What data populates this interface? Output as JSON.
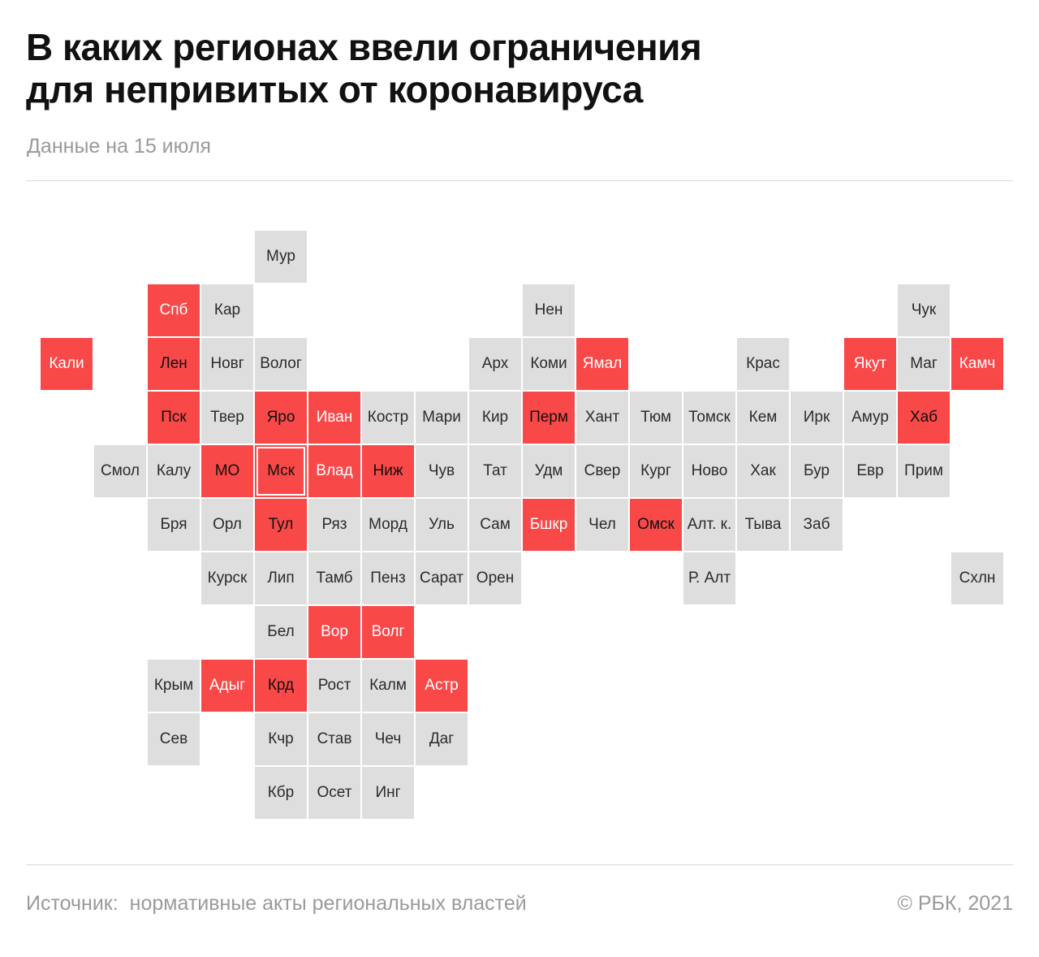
{
  "title": {
    "line1": "В каких регионах ввели ограничения",
    "line2": "для непривитых от коронавируса"
  },
  "subtitle": "Данные на 15 июля",
  "footer": {
    "source_label": "Источник:",
    "source_text": "нормативные акты региональных властей",
    "copyright": "©  РБК, 2021"
  },
  "colors": {
    "restricted": "#f94848",
    "no_restrictions": "#dedede"
  },
  "regions": [
    {
      "label": "Мур",
      "col": 4,
      "row": 0,
      "restricted": false
    },
    {
      "label": "Спб",
      "col": 2,
      "row": 1,
      "restricted": true
    },
    {
      "label": "Кар",
      "col": 3,
      "row": 1,
      "restricted": false
    },
    {
      "label": "Нен",
      "col": 9,
      "row": 1,
      "restricted": false
    },
    {
      "label": "Чук",
      "col": 16,
      "row": 1,
      "restricted": false
    },
    {
      "label": "Кали",
      "col": 0,
      "row": 2,
      "restricted": true
    },
    {
      "label": "Лен",
      "col": 2,
      "row": 2,
      "restricted": true,
      "dark": true
    },
    {
      "label": "Новг",
      "col": 3,
      "row": 2,
      "restricted": false
    },
    {
      "label": "Волог",
      "col": 4,
      "row": 2,
      "restricted": false
    },
    {
      "label": "Арх",
      "col": 8,
      "row": 2,
      "restricted": false
    },
    {
      "label": "Коми",
      "col": 9,
      "row": 2,
      "restricted": false
    },
    {
      "label": "Ямал",
      "col": 10,
      "row": 2,
      "restricted": true
    },
    {
      "label": "Крас",
      "col": 13,
      "row": 2,
      "restricted": false
    },
    {
      "label": "Якут",
      "col": 15,
      "row": 2,
      "restricted": true
    },
    {
      "label": "Маг",
      "col": 16,
      "row": 2,
      "restricted": false
    },
    {
      "label": "Камч",
      "col": 17,
      "row": 2,
      "restricted": true
    },
    {
      "label": "Пск",
      "col": 2,
      "row": 3,
      "restricted": true,
      "dark": true
    },
    {
      "label": "Твер",
      "col": 3,
      "row": 3,
      "restricted": false
    },
    {
      "label": "Яро",
      "col": 4,
      "row": 3,
      "restricted": true,
      "dark": true
    },
    {
      "label": "Иван",
      "col": 5,
      "row": 3,
      "restricted": true
    },
    {
      "label": "Костр",
      "col": 6,
      "row": 3,
      "restricted": false
    },
    {
      "label": "Мари",
      "col": 7,
      "row": 3,
      "restricted": false
    },
    {
      "label": "Кир",
      "col": 8,
      "row": 3,
      "restricted": false
    },
    {
      "label": "Перм",
      "col": 9,
      "row": 3,
      "restricted": true,
      "dark": true
    },
    {
      "label": "Хант",
      "col": 10,
      "row": 3,
      "restricted": false
    },
    {
      "label": "Тюм",
      "col": 11,
      "row": 3,
      "restricted": false
    },
    {
      "label": "Томск",
      "col": 12,
      "row": 3,
      "restricted": false
    },
    {
      "label": "Кем",
      "col": 13,
      "row": 3,
      "restricted": false
    },
    {
      "label": "Ирк",
      "col": 14,
      "row": 3,
      "restricted": false
    },
    {
      "label": "Амур",
      "col": 15,
      "row": 3,
      "restricted": false
    },
    {
      "label": "Хаб",
      "col": 16,
      "row": 3,
      "restricted": true,
      "dark": true
    },
    {
      "label": "Смол",
      "col": 1,
      "row": 4,
      "restricted": false
    },
    {
      "label": "Калу",
      "col": 2,
      "row": 4,
      "restricted": false
    },
    {
      "label": "МО",
      "col": 3,
      "row": 4,
      "restricted": true,
      "dark": true
    },
    {
      "label": "Мск",
      "col": 4,
      "row": 4,
      "restricted": true,
      "dark": true,
      "outlined": true
    },
    {
      "label": "Влад",
      "col": 5,
      "row": 4,
      "restricted": true
    },
    {
      "label": "Ниж",
      "col": 6,
      "row": 4,
      "restricted": true,
      "dark": true
    },
    {
      "label": "Чув",
      "col": 7,
      "row": 4,
      "restricted": false
    },
    {
      "label": "Тат",
      "col": 8,
      "row": 4,
      "restricted": false
    },
    {
      "label": "Удм",
      "col": 9,
      "row": 4,
      "restricted": false
    },
    {
      "label": "Свер",
      "col": 10,
      "row": 4,
      "restricted": false
    },
    {
      "label": "Кург",
      "col": 11,
      "row": 4,
      "restricted": false
    },
    {
      "label": "Ново",
      "col": 12,
      "row": 4,
      "restricted": false
    },
    {
      "label": "Хак",
      "col": 13,
      "row": 4,
      "restricted": false
    },
    {
      "label": "Бур",
      "col": 14,
      "row": 4,
      "restricted": false
    },
    {
      "label": "Евр",
      "col": 15,
      "row": 4,
      "restricted": false
    },
    {
      "label": "Прим",
      "col": 16,
      "row": 4,
      "restricted": false
    },
    {
      "label": "Бря",
      "col": 2,
      "row": 5,
      "restricted": false
    },
    {
      "label": "Орл",
      "col": 3,
      "row": 5,
      "restricted": false
    },
    {
      "label": "Тул",
      "col": 4,
      "row": 5,
      "restricted": true,
      "dark": true
    },
    {
      "label": "Ряз",
      "col": 5,
      "row": 5,
      "restricted": false
    },
    {
      "label": "Морд",
      "col": 6,
      "row": 5,
      "restricted": false
    },
    {
      "label": "Уль",
      "col": 7,
      "row": 5,
      "restricted": false
    },
    {
      "label": "Сам",
      "col": 8,
      "row": 5,
      "restricted": false
    },
    {
      "label": "Бшкр",
      "col": 9,
      "row": 5,
      "restricted": true
    },
    {
      "label": "Чел",
      "col": 10,
      "row": 5,
      "restricted": false
    },
    {
      "label": "Омск",
      "col": 11,
      "row": 5,
      "restricted": true,
      "dark": true
    },
    {
      "label": "Алт. к.",
      "col": 12,
      "row": 5,
      "restricted": false
    },
    {
      "label": "Тыва",
      "col": 13,
      "row": 5,
      "restricted": false
    },
    {
      "label": "Заб",
      "col": 14,
      "row": 5,
      "restricted": false
    },
    {
      "label": "Курск",
      "col": 3,
      "row": 6,
      "restricted": false
    },
    {
      "label": "Лип",
      "col": 4,
      "row": 6,
      "restricted": false
    },
    {
      "label": "Тамб",
      "col": 5,
      "row": 6,
      "restricted": false
    },
    {
      "label": "Пенз",
      "col": 6,
      "row": 6,
      "restricted": false
    },
    {
      "label": "Сарат",
      "col": 7,
      "row": 6,
      "restricted": false
    },
    {
      "label": "Орен",
      "col": 8,
      "row": 6,
      "restricted": false
    },
    {
      "label": "Р. Алт",
      "col": 12,
      "row": 6,
      "restricted": false
    },
    {
      "label": "Схлн",
      "col": 17,
      "row": 6,
      "restricted": false
    },
    {
      "label": "Бел",
      "col": 4,
      "row": 7,
      "restricted": false
    },
    {
      "label": "Вор",
      "col": 5,
      "row": 7,
      "restricted": true
    },
    {
      "label": "Волг",
      "col": 6,
      "row": 7,
      "restricted": true
    },
    {
      "label": "Крым",
      "col": 2,
      "row": 8,
      "restricted": false
    },
    {
      "label": "Адыг",
      "col": 3,
      "row": 8,
      "restricted": true
    },
    {
      "label": "Крд",
      "col": 4,
      "row": 8,
      "restricted": true,
      "dark": true
    },
    {
      "label": "Рост",
      "col": 5,
      "row": 8,
      "restricted": false
    },
    {
      "label": "Калм",
      "col": 6,
      "row": 8,
      "restricted": false
    },
    {
      "label": "Астр",
      "col": 7,
      "row": 8,
      "restricted": true
    },
    {
      "label": "Сев",
      "col": 2,
      "row": 9,
      "restricted": false
    },
    {
      "label": "Кчр",
      "col": 4,
      "row": 9,
      "restricted": false
    },
    {
      "label": "Став",
      "col": 5,
      "row": 9,
      "restricted": false
    },
    {
      "label": "Чеч",
      "col": 6,
      "row": 9,
      "restricted": false
    },
    {
      "label": "Даг",
      "col": 7,
      "row": 9,
      "restricted": false
    },
    {
      "label": "Кбр",
      "col": 4,
      "row": 10,
      "restricted": false
    },
    {
      "label": "Осет",
      "col": 5,
      "row": 10,
      "restricted": false
    },
    {
      "label": "Инг",
      "col": 6,
      "row": 10,
      "restricted": false
    }
  ]
}
